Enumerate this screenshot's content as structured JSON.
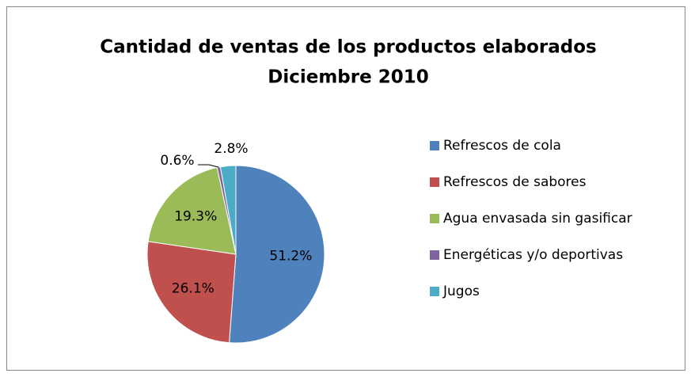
{
  "chart_data": {
    "type": "pie",
    "title": [
      "Cantidad de ventas de los productos elaborados",
      "Diciembre 2010"
    ],
    "categories": [
      "Refrescos de cola",
      "Refrescos de sabores",
      "Agua envasada sin gasificar",
      "Energéticas y/o deportivas",
      "Jugos"
    ],
    "values": [
      51.2,
      26.1,
      19.3,
      0.6,
      2.8
    ],
    "value_labels": [
      "51.2%",
      "26.1%",
      "19.3%",
      "0.6%",
      "2.8%"
    ],
    "colors": [
      "#4f81bd",
      "#c0504d",
      "#9bbb59",
      "#8064a2",
      "#4bacc6"
    ],
    "legend": "right"
  }
}
